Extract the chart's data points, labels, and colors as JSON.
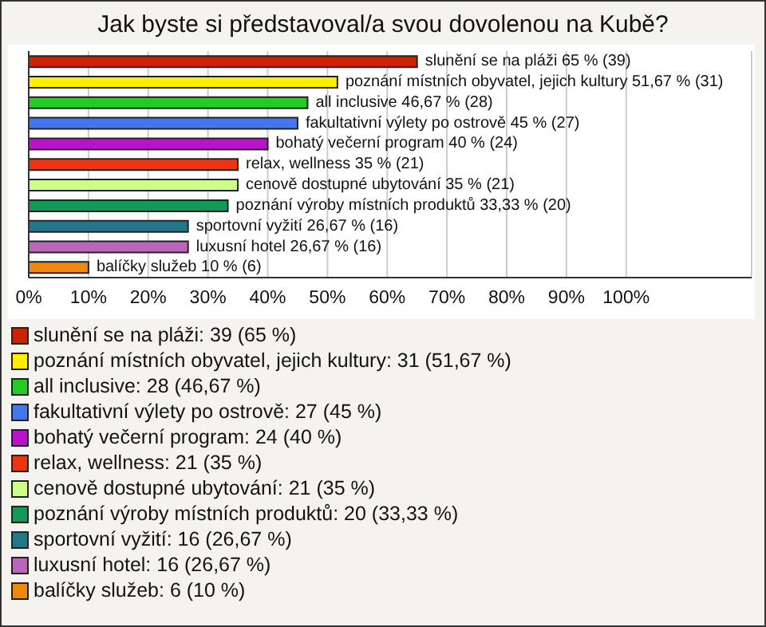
{
  "chart_data": {
    "type": "bar",
    "orientation": "horizontal",
    "stacked": true,
    "title": "Jak byste si představoval/a svou dovolenou na Kubě?",
    "categories": [
      null,
      null,
      null,
      null,
      null,
      null,
      null,
      null,
      null,
      null,
      null
    ],
    "series": [
      {
        "name": "slunění se na pláži: 39 (65 %)",
        "color": "#cc2200",
        "values": [
          65,
          null,
          null,
          null,
          null,
          null,
          null,
          null,
          null,
          null,
          null
        ],
        "value_labels": [
          "slunění se na pláži 65 % (39)",
          null,
          null,
          null,
          null,
          null,
          null,
          null,
          null,
          null,
          null
        ]
      },
      {
        "name": "poznání místních obyvatel, jejich kultury: 31 (51,67 %)",
        "color": "#ffee00",
        "values": [
          null,
          51.67,
          null,
          null,
          null,
          null,
          null,
          null,
          null,
          null,
          null
        ],
        "value_labels": [
          null,
          "poznání místních obyvatel, jejich kultury 51,67 % (31)",
          null,
          null,
          null,
          null,
          null,
          null,
          null,
          null,
          null
        ]
      },
      {
        "name": "all inclusive: 28 (46,67 %)",
        "color": "#22cc22",
        "values": [
          null,
          null,
          46.67,
          null,
          null,
          null,
          null,
          null,
          null,
          null,
          null
        ],
        "value_labels": [
          null,
          null,
          "all inclusive 46,67 % (28)",
          null,
          null,
          null,
          null,
          null,
          null,
          null,
          null
        ]
      },
      {
        "name": "fakultativní výlety po ostrově: 27 (45 %)",
        "color": "#4477ee",
        "values": [
          null,
          null,
          null,
          45,
          null,
          null,
          null,
          null,
          null,
          null,
          null
        ],
        "value_labels": [
          null,
          null,
          null,
          "fakultativní výlety po ostrově 45 % (27)",
          null,
          null,
          null,
          null,
          null,
          null,
          null
        ]
      },
      {
        "name": "bohatý večerní program: 24 (40 %)",
        "color": "#bb11cc",
        "values": [
          null,
          null,
          null,
          null,
          40,
          null,
          null,
          null,
          null,
          null,
          null
        ],
        "value_labels": [
          null,
          null,
          null,
          null,
          "bohatý večerní program 40 % (24)",
          null,
          null,
          null,
          null,
          null,
          null
        ]
      },
      {
        "name": "relax, wellness: 21 (35 %)",
        "color": "#ee3311",
        "values": [
          null,
          null,
          null,
          null,
          null,
          35,
          null,
          null,
          null,
          null,
          null
        ],
        "value_labels": [
          null,
          null,
          null,
          null,
          null,
          "relax, wellness 35 % (21)",
          null,
          null,
          null,
          null,
          null
        ]
      },
      {
        "name": "cenově dostupné ubytování: 21 (35 %)",
        "color": "#ccff88",
        "values": [
          null,
          null,
          null,
          null,
          null,
          null,
          35,
          null,
          null,
          null,
          null
        ],
        "value_labels": [
          null,
          null,
          null,
          null,
          null,
          null,
          "cenově dostupné ubytování 35 % (21)",
          null,
          null,
          null,
          null
        ]
      },
      {
        "name": "poznání výroby místních produktů: 20 (33,33 %)",
        "color": "#119955",
        "values": [
          null,
          null,
          null,
          null,
          null,
          null,
          null,
          33.33,
          null,
          null,
          null
        ],
        "value_labels": [
          null,
          null,
          null,
          null,
          null,
          null,
          null,
          "poznání výroby místních produktů 33,33 % (20)",
          null,
          null,
          null
        ]
      },
      {
        "name": "sportovní vyžití: 16 (26,67 %)",
        "color": "#227788",
        "values": [
          null,
          null,
          null,
          null,
          null,
          null,
          null,
          null,
          26.67,
          null,
          null
        ],
        "value_labels": [
          null,
          null,
          null,
          null,
          null,
          null,
          null,
          null,
          "sportovní vyžití 26,67 % (16)",
          null,
          null
        ]
      },
      {
        "name": "luxusní hotel: 16 (26,67 %)",
        "color": "#bb66bb",
        "values": [
          null,
          null,
          null,
          null,
          null,
          null,
          null,
          null,
          null,
          26.67,
          null
        ],
        "value_labels": [
          null,
          null,
          null,
          null,
          null,
          null,
          null,
          null,
          null,
          "luxusní hotel 26,67 % (16)",
          null
        ]
      },
      {
        "name": "balíčky služeb: 6 (10 %)",
        "color": "#ee8811",
        "values": [
          null,
          null,
          null,
          null,
          null,
          null,
          null,
          null,
          null,
          null,
          10
        ],
        "value_labels": [
          null,
          null,
          null,
          null,
          null,
          null,
          null,
          null,
          null,
          null,
          "balíčky služeb 10 % (6)"
        ]
      }
    ],
    "xlim": [
      0,
      121
    ],
    "xticks": [
      {
        "value": 0,
        "label": "0%"
      },
      {
        "value": 10,
        "label": "10%"
      },
      {
        "value": 20,
        "label": "20%"
      },
      {
        "value": 30,
        "label": "30%"
      },
      {
        "value": 40,
        "label": "40%"
      },
      {
        "value": 50,
        "label": "50%"
      },
      {
        "value": 60,
        "label": "60%"
      },
      {
        "value": 70,
        "label": "70%"
      },
      {
        "value": 80,
        "label": "80%"
      },
      {
        "value": 90,
        "label": "90%"
      },
      {
        "value": 100,
        "label": "100%"
      }
    ],
    "grid": "x",
    "legend": "bottom",
    "tick_labels": "x"
  }
}
